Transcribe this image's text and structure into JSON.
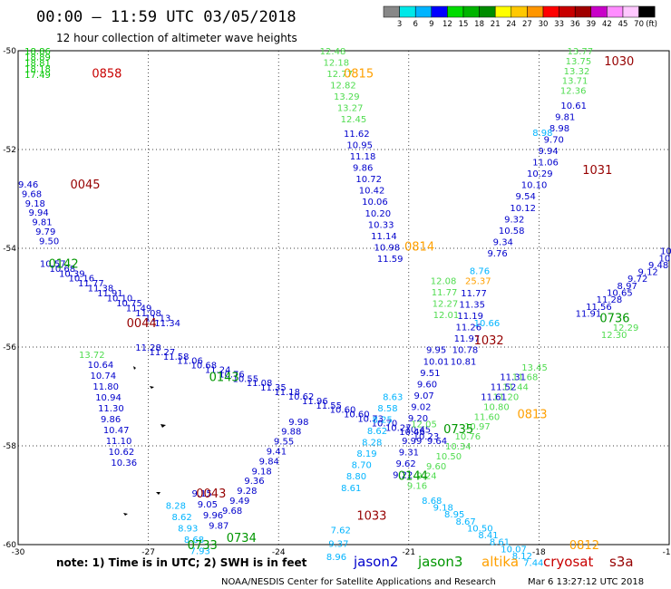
{
  "title": "00:00 – 11:59 UTC 03/05/2018",
  "subtitle": "12 hour collection of altimeter wave heights",
  "colorbar": {
    "unit": "(ft)",
    "labels": [
      "3",
      "6",
      "9",
      "12",
      "15",
      "18",
      "21",
      "24",
      "27",
      "30",
      "33",
      "36",
      "39",
      "42",
      "45",
      "70"
    ],
    "colors": [
      "#888888",
      "#00e8e8",
      "#00b4ff",
      "#0000ff",
      "#00dc00",
      "#00b400",
      "#008c00",
      "#ffff00",
      "#ffc800",
      "#ff9600",
      "#ff0000",
      "#c80000",
      "#a00000",
      "#c800c8",
      "#ff8cff",
      "#ffc8ff",
      "#000000"
    ]
  },
  "axes": {
    "lon_ticks": [
      "-30",
      "-27",
      "-24",
      "-21",
      "-18",
      "-15"
    ],
    "lat_ticks": [
      "-50",
      "-52",
      "-54",
      "-56",
      "-58",
      "-60"
    ]
  },
  "note": "note: 1) Time is in UTC; 2) SWH is in feet",
  "satellites": [
    {
      "name": "jason2",
      "color": "#0000cc"
    },
    {
      "name": "jason3",
      "color": "#009600"
    },
    {
      "name": "altika",
      "color": "#ffa000"
    },
    {
      "name": "cryosat",
      "color": "#c80000"
    },
    {
      "name": "s3a",
      "color": "#960000"
    }
  ],
  "footer": {
    "agency": "NOAA/NESDIS Center for Satellite Applications and Research",
    "timestamp": "Mar  6 13:27:12 UTC 2018"
  },
  "pass_times": [
    {
      "text": "0858",
      "lon": -28.3,
      "lat": -50.45,
      "color": "#c80000"
    },
    {
      "text": "0815",
      "lon": -22.5,
      "lat": -50.45,
      "color": "#ffa000"
    },
    {
      "text": "1030",
      "lon": -16.5,
      "lat": -50.2,
      "color": "#960000"
    },
    {
      "text": "0045",
      "lon": -28.8,
      "lat": -52.7,
      "color": "#960000"
    },
    {
      "text": "1031",
      "lon": -17.0,
      "lat": -52.4,
      "color": "#960000"
    },
    {
      "text": "0814",
      "lon": -21.1,
      "lat": -53.95,
      "color": "#ffa000"
    },
    {
      "text": "0142",
      "lon": -29.3,
      "lat": -54.3,
      "color": "#009600"
    },
    {
      "text": "0044",
      "lon": -27.5,
      "lat": -55.5,
      "color": "#960000"
    },
    {
      "text": "0736",
      "lon": -16.6,
      "lat": -55.4,
      "color": "#009600"
    },
    {
      "text": "1032",
      "lon": -19.5,
      "lat": -55.85,
      "color": "#960000"
    },
    {
      "text": "0143",
      "lon": -25.6,
      "lat": -56.6,
      "color": "#009600"
    },
    {
      "text": "0813",
      "lon": -18.5,
      "lat": -57.35,
      "color": "#ffa000"
    },
    {
      "text": "0735",
      "lon": -20.2,
      "lat": -57.65,
      "color": "#009600"
    },
    {
      "text": "0144",
      "lon": -21.25,
      "lat": -58.6,
      "color": "#009600"
    },
    {
      "text": "0043",
      "lon": -25.9,
      "lat": -58.95,
      "color": "#960000"
    },
    {
      "text": "1033",
      "lon": -22.2,
      "lat": -59.4,
      "color": "#960000"
    },
    {
      "text": "0734",
      "lon": -25.2,
      "lat": -59.85,
      "color": "#009600"
    },
    {
      "text": "0733",
      "lon": -26.1,
      "lat": -60.0,
      "color": "#009600"
    },
    {
      "text": "0812",
      "lon": -17.3,
      "lat": -60.0,
      "color": "#ffa000"
    }
  ],
  "tracks": [
    {
      "sat": "jason3",
      "color": "#00c800",
      "lon0": -29.85,
      "lat0": -50.0,
      "dlon": 0.0,
      "dlat": 0.12,
      "values": [
        "18.86",
        "18.89",
        "18.81",
        "18.18",
        "17.49"
      ]
    },
    {
      "sat": "jason3-a",
      "color": "#50dc50",
      "lon0": -23.05,
      "lat0": -50.0,
      "dlon": 0.08,
      "dlat": 0.23,
      "values": [
        "12.48",
        "12.18",
        "12.77",
        "12.82",
        "13.29",
        "13.27",
        "12.45"
      ]
    },
    {
      "sat": "jason2-a",
      "color": "#0000cc",
      "lon0": -22.5,
      "lat0": -51.67,
      "dlon": 0.07,
      "dlat": 0.23,
      "values": [
        "11.62",
        "10.95",
        "11.18",
        "9.86",
        "10.72",
        "10.42",
        "10.06",
        "10.20",
        "10.33",
        "11.14",
        "10.98",
        "11.59"
      ]
    },
    {
      "sat": "jason3-b",
      "color": "#50dc50",
      "lon0": -20.5,
      "lat0": -54.65,
      "dlon": 0.02,
      "dlat": 0.23,
      "values": [
        "12.08",
        "11.77",
        "12.27",
        "12.01"
      ]
    },
    {
      "sat": "jason3-c",
      "color": "#50dc50",
      "lon0": -17.35,
      "lat0": -50.0,
      "dlon": -0.04,
      "dlat": 0.2,
      "values": [
        "13.77",
        "13.75",
        "13.32",
        "13.71",
        "12.36"
      ]
    },
    {
      "sat": "jason2-b",
      "color": "#0000cc",
      "lon0": -17.5,
      "lat0": -51.1,
      "dlon": -0.13,
      "dlat": 0.23,
      "values": [
        "10.61",
        "9.81",
        "8.98",
        "9.70",
        "9.94",
        "11.06",
        "10.29",
        "10.10",
        "9.54",
        "10.12",
        "9.32",
        "10.58",
        "9.34",
        "9.76"
      ]
    },
    {
      "sat": "altika-a",
      "color": "#ffa000",
      "lon0": -19.7,
      "lat0": -54.65,
      "dlon": 0,
      "dlat": 0,
      "values": [
        "25.37"
      ]
    },
    {
      "sat": "jason2-c",
      "color": "#0000cc",
      "lon0": -19.8,
      "lat0": -54.9,
      "dlon": -0.04,
      "dlat": 0.23,
      "values": [
        "11.77",
        "11.35",
        "11.19",
        "11.26",
        "11.97",
        "10.78",
        "10.81"
      ]
    },
    {
      "sat": "jason2-d",
      "color": "#0000cc",
      "lon0": -30.0,
      "lat0": -52.7,
      "dlon": 0.08,
      "dlat": 0.19,
      "values": [
        "9.46",
        "9.68",
        "9.18",
        "9.94",
        "9.81",
        "9.79",
        "9.50"
      ]
    },
    {
      "sat": "jason2-e",
      "color": "#0000cc",
      "lon0": -29.5,
      "lat0": -54.3,
      "dlon": 0.22,
      "dlat": 0.1,
      "values": [
        "10.57",
        "10.68",
        "10.39",
        "10.16",
        "11.77",
        "11.38",
        "11.91",
        "10.10",
        "10.75",
        "11.49",
        "11.08",
        "11.13",
        "11.34"
      ]
    },
    {
      "sat": "jason2-f",
      "color": "#0000cc",
      "lon0": -27.3,
      "lat0": -56.0,
      "dlon": 0.32,
      "dlat": 0.09,
      "values": [
        "11.28",
        "11.27",
        "11.58",
        "11.06",
        "10.68",
        "11.24",
        "10.76",
        "10.55",
        "11.08",
        "11.35",
        "11.18",
        "10.62",
        "11.96",
        "11.55",
        "10.60",
        "10.60",
        "10.73",
        "10.70",
        "10.27",
        "10.46",
        "10.23",
        "9.64"
      ]
    },
    {
      "sat": "jason2-g",
      "color": "#0000cc",
      "lon0": -28.4,
      "lat0": -56.35,
      "dlon": 0.06,
      "dlat": 0.22,
      "values": [
        "10.64",
        "10.74",
        "11.80",
        "10.94",
        "11.30",
        "9.86",
        "10.47",
        "11.10",
        "10.62",
        "10.36"
      ]
    },
    {
      "sat": "jason3-d",
      "color": "#50dc50",
      "lon0": -28.6,
      "lat0": -56.15,
      "dlon": 0,
      "dlat": 0,
      "values": [
        "13.72"
      ]
    },
    {
      "sat": "jason2-h",
      "color": "#0000cc",
      "lon0": -26.0,
      "lat0": -58.95,
      "dlon": 0.13,
      "dlat": 0.22,
      "values": [
        "9.15",
        "9.05",
        "9.96",
        "9.87"
      ]
    },
    {
      "sat": "jason2-i",
      "color": "#0000cc",
      "lon0": -25.3,
      "lat0": -59.3,
      "dlon": 0.17,
      "dlat": -0.2,
      "values": [
        "9.68",
        "9.49",
        "9.28",
        "9.36",
        "9.18",
        "9.84",
        "9.41",
        "9.55",
        "9.88",
        "9.98"
      ]
    },
    {
      "sat": "jason2-j",
      "color": "#0000cc",
      "lon0": -20.6,
      "lat0": -56.05,
      "dlon": -0.07,
      "dlat": 0.23,
      "values": [
        "9.95",
        "10.01",
        "9.51",
        "9.60",
        "9.07",
        "9.02",
        "9.20",
        "10.45",
        "9.99",
        "9.31",
        "9.62",
        "9.22"
      ]
    },
    {
      "sat": "jason3-e",
      "color": "#50dc50",
      "lon0": -18.4,
      "lat0": -56.4,
      "dlon": -0.22,
      "dlat": 0.2,
      "values": [
        "13.45",
        "11.68",
        "11.44",
        "11.20",
        "10.80",
        "11.60",
        "10.97",
        "10.76",
        "10.34",
        "10.50",
        "9.60",
        "9.24",
        "9.16"
      ]
    },
    {
      "sat": "jason2-k",
      "color": "#0000cc",
      "lon0": -18.9,
      "lat0": -56.6,
      "dlon": -0.22,
      "dlat": 0.2,
      "values": [
        "11.31",
        "11.52",
        "11.61"
      ]
    },
    {
      "sat": "jason2-l",
      "color": "#0000cc",
      "lon0": -15.0,
      "lat0": -54.05,
      "dlon": -0.24,
      "dlat": 0.14,
      "values": [
        "10.3",
        "10.47",
        "9.48",
        "9.12",
        "9.72",
        "8.97",
        "10.65",
        "11.28",
        "11.56",
        "11.91"
      ]
    },
    {
      "sat": "jason3-f",
      "color": "#50dc50",
      "lon0": -16.3,
      "lat0": -55.6,
      "dlon": -0.27,
      "dlat": 0.14,
      "values": [
        "12.29",
        "12.30"
      ]
    },
    {
      "sat": "jason3-g",
      "color": "#50dc50",
      "lon0": -20.95,
      "lat0": -57.55,
      "dlon": 0,
      "dlat": 0,
      "values": [
        "12.05"
      ]
    },
    {
      "sat": "altika-b",
      "color": "#00b4ff",
      "lon0": -21.6,
      "lat0": -57.0,
      "dlon": -0.12,
      "dlat": 0.23,
      "values": [
        "8.63",
        "8.58",
        "8.25",
        "8.62",
        "8.28",
        "8.19",
        "8.70",
        "8.80",
        "8.61"
      ]
    },
    {
      "sat": "altika-c",
      "color": "#00b4ff",
      "lon0": -20.7,
      "lat0": -59.1,
      "dlon": 0.26,
      "dlat": 0.14,
      "values": [
        "8.68",
        "9.18",
        "8.95",
        "8.67",
        "10.50",
        "8.41",
        "8.61",
        "10.07",
        "8.12",
        "7.44"
      ]
    },
    {
      "sat": "altika-d",
      "color": "#00b4ff",
      "lon0": -22.8,
      "lat0": -59.7,
      "dlon": -0.05,
      "dlat": 0.27,
      "values": [
        "7.62",
        "9.37",
        "8.96"
      ]
    },
    {
      "sat": "altika-e",
      "color": "#00b4ff",
      "lon0": -26.6,
      "lat0": -59.2,
      "dlon": 0.14,
      "dlat": 0.23,
      "values": [
        "8.28",
        "8.62",
        "8.93",
        "8.68",
        "7.93"
      ]
    },
    {
      "sat": "altika-f",
      "color": "#00b4ff",
      "lon0": -19.5,
      "lat0": -55.5,
      "dlon": 0,
      "dlat": 0,
      "values": [
        "10.66"
      ]
    },
    {
      "sat": "altika-g",
      "color": "#00b4ff",
      "lon0": -19.6,
      "lat0": -54.45,
      "dlon": 0,
      "dlat": 0,
      "values": [
        "8.76"
      ]
    },
    {
      "sat": "altika-h",
      "color": "#00b4ff",
      "lon0": -18.15,
      "lat0": -51.65,
      "dlon": 0,
      "dlat": 0,
      "values": [
        "8.98"
      ]
    }
  ]
}
